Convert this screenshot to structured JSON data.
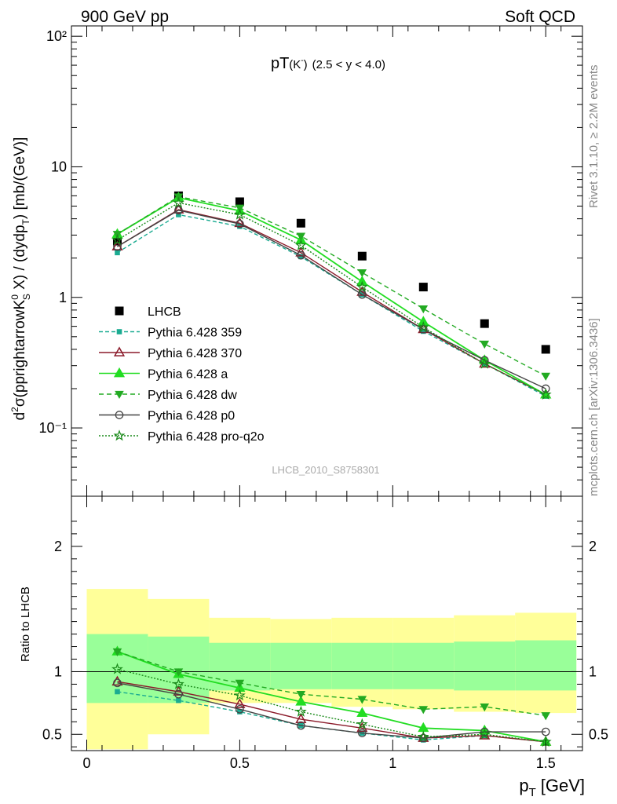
{
  "header": {
    "left": "900 GeV pp",
    "right": "Soft QCD"
  },
  "side_labels": {
    "top": "Rivet 3.1.10, ≥ 2.2M events",
    "bottom": "mcplots.cern.ch [arXiv:1306.3436]"
  },
  "chart_data": [
    {
      "type": "line",
      "title": "pT(K⁻) (2.5 < y < 4.0)",
      "title_main": "pT",
      "title_paren": "(K",
      "title_sup": "-",
      "title_close": ")",
      "title_range": "(2.5 < y < 4.0)",
      "watermark": "LHCB_2010_S8758301",
      "ylabel": "d²σ(pprightarrowK⁰S X) / (dydp_T) [mb/(GeV)]",
      "yscale": "log",
      "ylim": [
        0.03,
        120
      ],
      "xlim": [
        -0.05,
        1.62
      ],
      "ytick_labels": [
        "10⁻¹",
        "1",
        "10",
        "10²"
      ],
      "x": [
        0.1,
        0.3,
        0.5,
        0.7,
        0.9,
        1.1,
        1.3,
        1.5
      ],
      "series": [
        {
          "name": "LHCB",
          "color": "#000000",
          "marker": "square",
          "dash": "none",
          "values": [
            2.7,
            6.0,
            5.4,
            3.7,
            2.07,
            1.2,
            0.63,
            0.4
          ]
        },
        {
          "name": "Pythia 6.428 359",
          "color": "#1aab91",
          "marker": "smallsquare",
          "dash": "5,3",
          "values": [
            2.2,
            4.3,
            3.5,
            2.05,
            1.05,
            0.55,
            0.31,
            0.175
          ]
        },
        {
          "name": "Pythia 6.428 370",
          "color": "#8b1a2a",
          "marker": "triangle-open",
          "dash": "none",
          "values": [
            2.45,
            4.7,
            3.7,
            2.2,
            1.1,
            0.57,
            0.31,
            0.18
          ]
        },
        {
          "name": "Pythia 6.428 a",
          "color": "#22dd22",
          "marker": "triangle",
          "dash": "none",
          "values": [
            3.05,
            5.8,
            4.6,
            2.75,
            1.32,
            0.65,
            0.33,
            0.18
          ]
        },
        {
          "name": "Pythia 6.428 dw",
          "color": "#22aa22",
          "marker": "triangle-down",
          "dash": "6,4",
          "values": [
            3.05,
            5.9,
            4.85,
            2.95,
            1.55,
            0.82,
            0.44,
            0.25
          ]
        },
        {
          "name": "Pythia 6.428 p0",
          "color": "#444444",
          "marker": "circle-open",
          "dash": "none",
          "values": [
            2.45,
            4.65,
            3.65,
            2.1,
            1.05,
            0.57,
            0.33,
            0.2
          ]
        },
        {
          "name": "Pythia 6.428 pro-q2o",
          "color": "#1a8a1a",
          "marker": "star",
          "dash": "2,2",
          "values": [
            2.75,
            5.3,
            4.3,
            2.5,
            1.2,
            0.59,
            0.31,
            0.18
          ]
        }
      ]
    },
    {
      "type": "line",
      "ylabel": "Ratio to LHCB",
      "ylim": [
        0.37,
        2.4
      ],
      "xlabel": "p_T [GeV]",
      "xlabel_main": "p",
      "xlabel_sub": "T",
      "xlabel_unit": "[GeV]",
      "xticks": [
        0,
        0.5,
        1,
        1.5
      ],
      "xtick_labels": [
        "0",
        "0.5",
        "1",
        "1.5"
      ],
      "yticks": [
        0.5,
        1,
        2
      ],
      "ytick_labels": [
        "0.5",
        "1",
        "2"
      ],
      "uncertainty_bins": [
        {
          "x0": 0.0,
          "x1": 0.2,
          "inner": [
            0.75,
            1.3
          ],
          "outer": [
            0.38,
            1.66
          ]
        },
        {
          "x0": 0.2,
          "x1": 0.4,
          "inner": [
            0.75,
            1.28
          ],
          "outer": [
            0.5,
            1.58
          ]
        },
        {
          "x0": 0.4,
          "x1": 0.6,
          "inner": [
            0.85,
            1.23
          ],
          "outer": [
            0.75,
            1.43
          ]
        },
        {
          "x0": 0.6,
          "x1": 0.8,
          "inner": [
            0.86,
            1.23
          ],
          "outer": [
            0.75,
            1.42
          ]
        },
        {
          "x0": 0.8,
          "x1": 1.0,
          "inner": [
            0.86,
            1.23
          ],
          "outer": [
            0.72,
            1.43
          ]
        },
        {
          "x0": 1.0,
          "x1": 1.2,
          "inner": [
            0.86,
            1.23
          ],
          "outer": [
            0.7,
            1.43
          ]
        },
        {
          "x0": 1.2,
          "x1": 1.4,
          "inner": [
            0.85,
            1.24
          ],
          "outer": [
            0.68,
            1.45
          ]
        },
        {
          "x0": 1.4,
          "x1": 1.6,
          "inner": [
            0.85,
            1.25
          ],
          "outer": [
            0.67,
            1.47
          ]
        }
      ],
      "series": [
        {
          "name": "Pythia 6.428 359",
          "values": [
            0.84,
            0.77,
            0.68,
            0.57,
            0.51,
            0.455,
            0.49,
            0.44
          ]
        },
        {
          "name": "Pythia 6.428 370",
          "values": [
            0.92,
            0.84,
            0.74,
            0.62,
            0.55,
            0.47,
            0.49,
            0.44
          ]
        },
        {
          "name": "Pythia 6.428 a",
          "values": [
            1.16,
            0.98,
            0.87,
            0.76,
            0.67,
            0.55,
            0.53,
            0.44
          ]
        },
        {
          "name": "Pythia 6.428 dw",
          "values": [
            1.16,
            1.0,
            0.91,
            0.82,
            0.78,
            0.7,
            0.72,
            0.65
          ]
        },
        {
          "name": "Pythia 6.428 p0",
          "values": [
            0.91,
            0.82,
            0.7,
            0.57,
            0.51,
            0.47,
            0.52,
            0.52
          ]
        },
        {
          "name": "Pythia 6.428 pro-q2o",
          "values": [
            1.02,
            0.9,
            0.81,
            0.68,
            0.58,
            0.48,
            0.5,
            0.44
          ]
        }
      ]
    }
  ]
}
